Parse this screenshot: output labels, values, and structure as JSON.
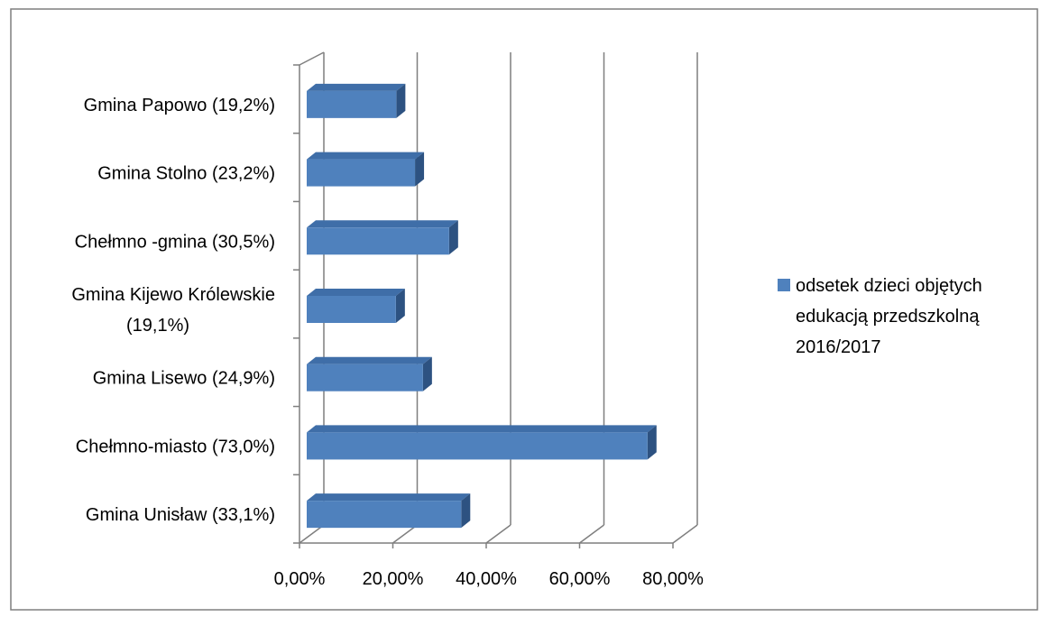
{
  "chart_data": {
    "type": "bar",
    "orientation": "horizontal",
    "style": "3d",
    "title": "",
    "xlabel": "",
    "ylabel": "",
    "categories": [
      "Gmina Papowo (19,2%)",
      "Gmina Stolno (23,2%)",
      "Chełmno -gmina (30,5%)",
      "Gmina Kijewo Królewskie (19,1%)",
      "Gmina Lisewo (24,9%)",
      "Chełmno-miasto (73,0%)",
      "Gmina Unisław (33,1%)"
    ],
    "series": [
      {
        "name": "odsetek dzieci objętych edukacją przedszkolną 2016/2017",
        "values": [
          19.2,
          23.2,
          30.5,
          19.1,
          24.9,
          73.0,
          33.1
        ],
        "color": "#4f81bd"
      }
    ],
    "xlim": [
      0,
      80
    ],
    "xticks": [
      "0,00%",
      "20,00%",
      "40,00%",
      "60,00%",
      "80,00%"
    ],
    "grid": "vertical",
    "legend_position": "right"
  },
  "colors": {
    "bar_front": "#4f81bd",
    "bar_top": "#3f6ea8",
    "bar_side": "#2d5281",
    "grid": "#7f7f7f",
    "frame": "#7f7f7f"
  }
}
